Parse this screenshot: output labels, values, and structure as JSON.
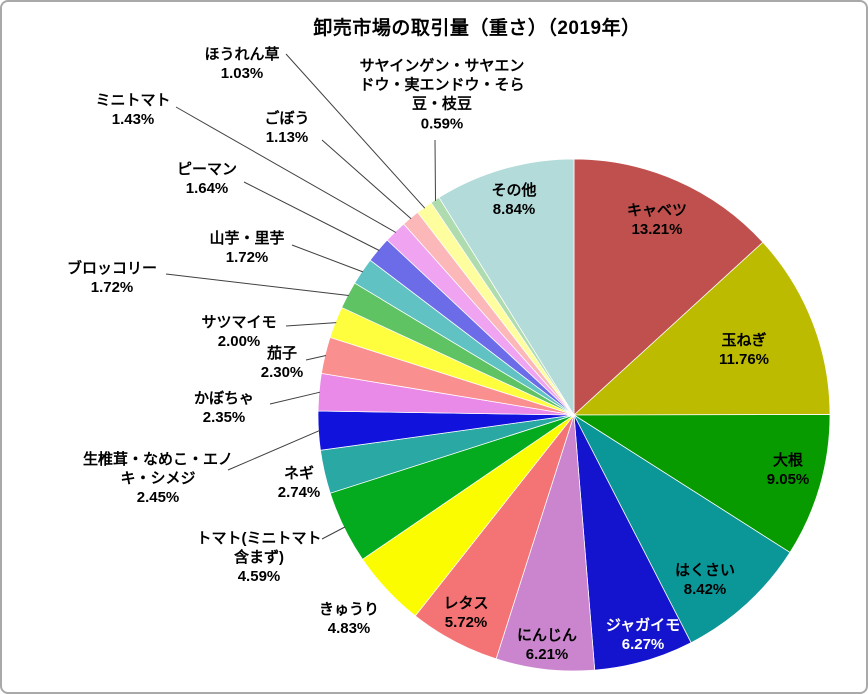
{
  "window": {
    "background": "#ffffff",
    "border_color": "#a9a9a9"
  },
  "chart_data": {
    "type": "pie",
    "title": "卸売市場の取引量（重さ）（2019年）",
    "value_unit": "%",
    "start_angle_deg": 0,
    "direction": "clockwise",
    "legend": "none",
    "labels_show": "category-name-and-percent",
    "slices": [
      {
        "label": "キャベツ",
        "value": 13.21,
        "pct_text": "13.21%",
        "color": "#C0504D",
        "text_color": "#000000"
      },
      {
        "label": "玉ねぎ",
        "value": 11.76,
        "pct_text": "11.76%",
        "color": "#BCBB00",
        "text_color": "#000000"
      },
      {
        "label": "大根",
        "value": 9.05,
        "pct_text": "9.05%",
        "color": "#089B00",
        "text_color": "#000000"
      },
      {
        "label": "はくさい",
        "value": 8.42,
        "pct_text": "8.42%",
        "color": "#0B9698",
        "text_color": "#000000"
      },
      {
        "label": "ジャガイモ",
        "value": 6.27,
        "pct_text": "6.27%",
        "color": "#1414CE",
        "text_color": "#FFFFFF"
      },
      {
        "label": "にんじん",
        "value": 6.21,
        "pct_text": "6.21%",
        "color": "#CB85CE",
        "text_color": "#000000"
      },
      {
        "label": "レタス",
        "value": 5.72,
        "pct_text": "5.72%",
        "color": "#F47374",
        "text_color": "#000000"
      },
      {
        "label": "きゅうり",
        "value": 4.83,
        "pct_text": "4.83%",
        "color": "#FCFC00",
        "text_color": "#000000"
      },
      {
        "label": "トマト(ミニトマト\n含まず)",
        "value": 4.59,
        "pct_text": "4.59%",
        "color": "#05AB1F",
        "text_color": "#000000"
      },
      {
        "label": "ネギ",
        "value": 2.74,
        "pct_text": "2.74%",
        "color": "#29A8A4",
        "text_color": "#000000"
      },
      {
        "label": "生椎茸・なめこ・エノ\nキ・シメジ",
        "value": 2.45,
        "pct_text": "2.45%",
        "color": "#1112DC",
        "text_color": "#000000"
      },
      {
        "label": "かぼちゃ",
        "value": 2.35,
        "pct_text": "2.35%",
        "color": "#E98AE9",
        "text_color": "#000000"
      },
      {
        "label": "茄子",
        "value": 2.3,
        "pct_text": "2.30%",
        "color": "#FA8F90",
        "text_color": "#000000"
      },
      {
        "label": "サツマイモ",
        "value": 2.0,
        "pct_text": "2.00%",
        "color": "#FEFE3E",
        "text_color": "#000000"
      },
      {
        "label": "ブロッコリー",
        "value": 1.72,
        "pct_text": "1.72%",
        "color": "#5FC363",
        "text_color": "#000000"
      },
      {
        "label": "山芋・里芋",
        "value": 1.72,
        "pct_text": "1.72%",
        "color": "#61C2C3",
        "text_color": "#000000"
      },
      {
        "label": "ピーマン",
        "value": 1.64,
        "pct_text": "1.64%",
        "color": "#6C6CE9",
        "text_color": "#000000"
      },
      {
        "label": "ミニトマト",
        "value": 1.43,
        "pct_text": "1.43%",
        "color": "#F0A3F0",
        "text_color": "#000000"
      },
      {
        "label": "ごぼう",
        "value": 1.13,
        "pct_text": "1.13%",
        "color": "#FCB7B8",
        "text_color": "#000000"
      },
      {
        "label": "ほうれん草",
        "value": 1.03,
        "pct_text": "1.03%",
        "color": "#FEFE9E",
        "text_color": "#000000"
      },
      {
        "label": "サヤインゲン・サヤエン\nドウ・実エンドウ・そら\n豆・枝豆",
        "value": 0.59,
        "pct_text": "0.59%",
        "color": "#AEDCAE",
        "text_color": "#000000"
      },
      {
        "label": "その他",
        "value": 8.84,
        "pct_text": "8.84%",
        "color": "#B2DBD9",
        "text_color": "#000000"
      }
    ]
  }
}
